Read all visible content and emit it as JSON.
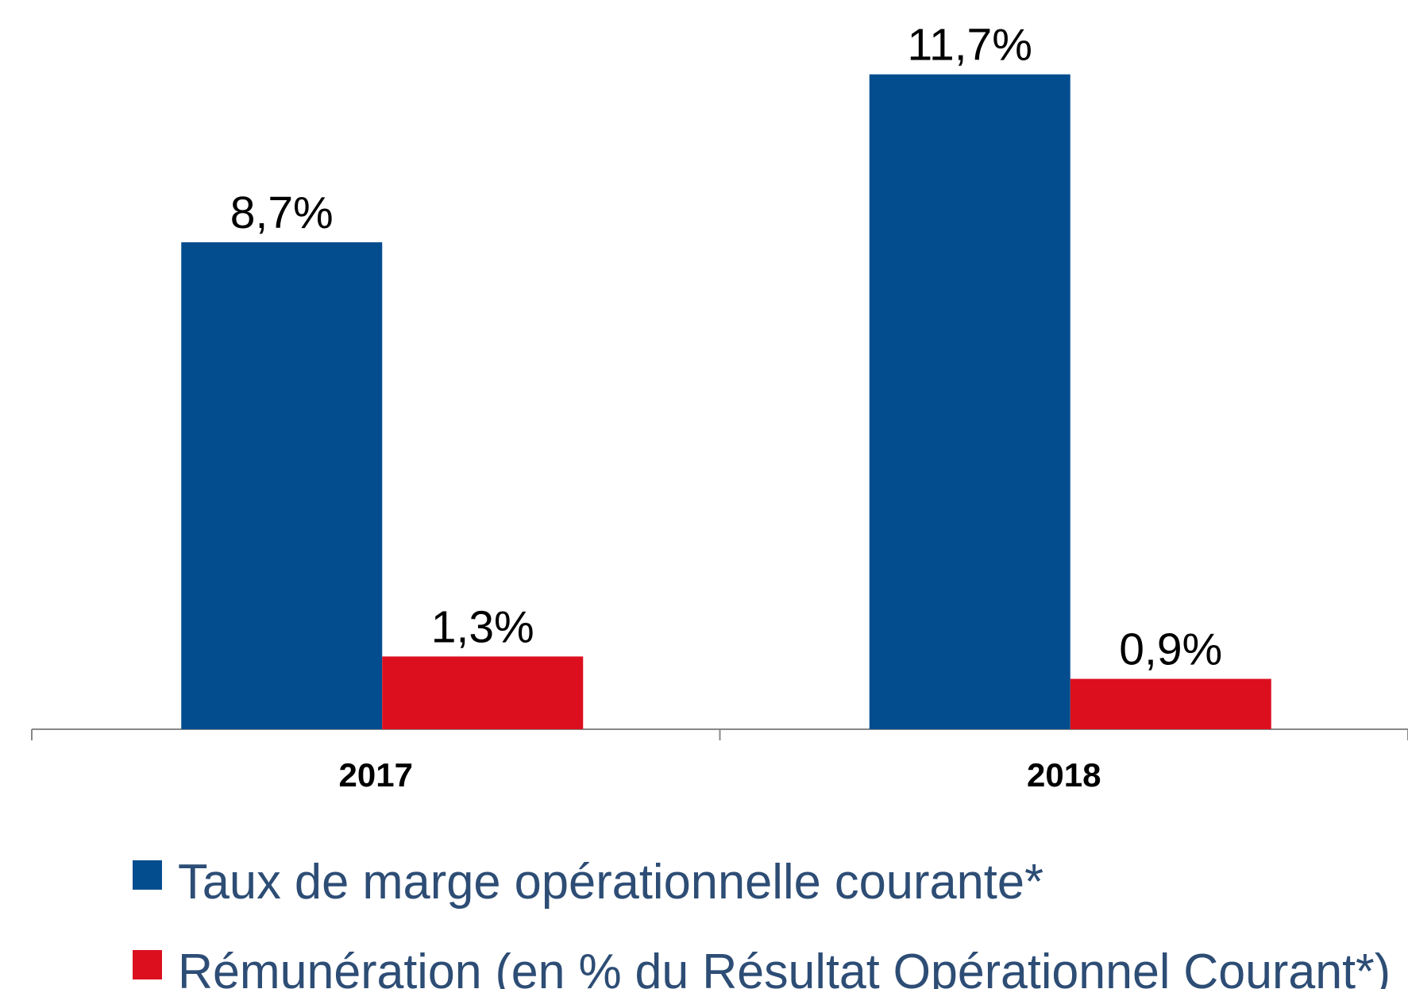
{
  "chart_data": {
    "type": "bar",
    "categories": [
      "2017",
      "2018"
    ],
    "series": [
      {
        "name": "Taux de marge opérationnelle courante*",
        "color": "#034d8f",
        "values": [
          8.7,
          11.7
        ],
        "value_labels": [
          "8,7%",
          "11,7%"
        ]
      },
      {
        "name": "Rémunération (en % du Résultat Opérationnel Courant*)",
        "color": "#dc0f1f",
        "values": [
          1.3,
          0.9
        ],
        "value_labels": [
          "1,3%",
          "0,9%"
        ]
      }
    ],
    "ylim": [
      0,
      13
    ]
  }
}
